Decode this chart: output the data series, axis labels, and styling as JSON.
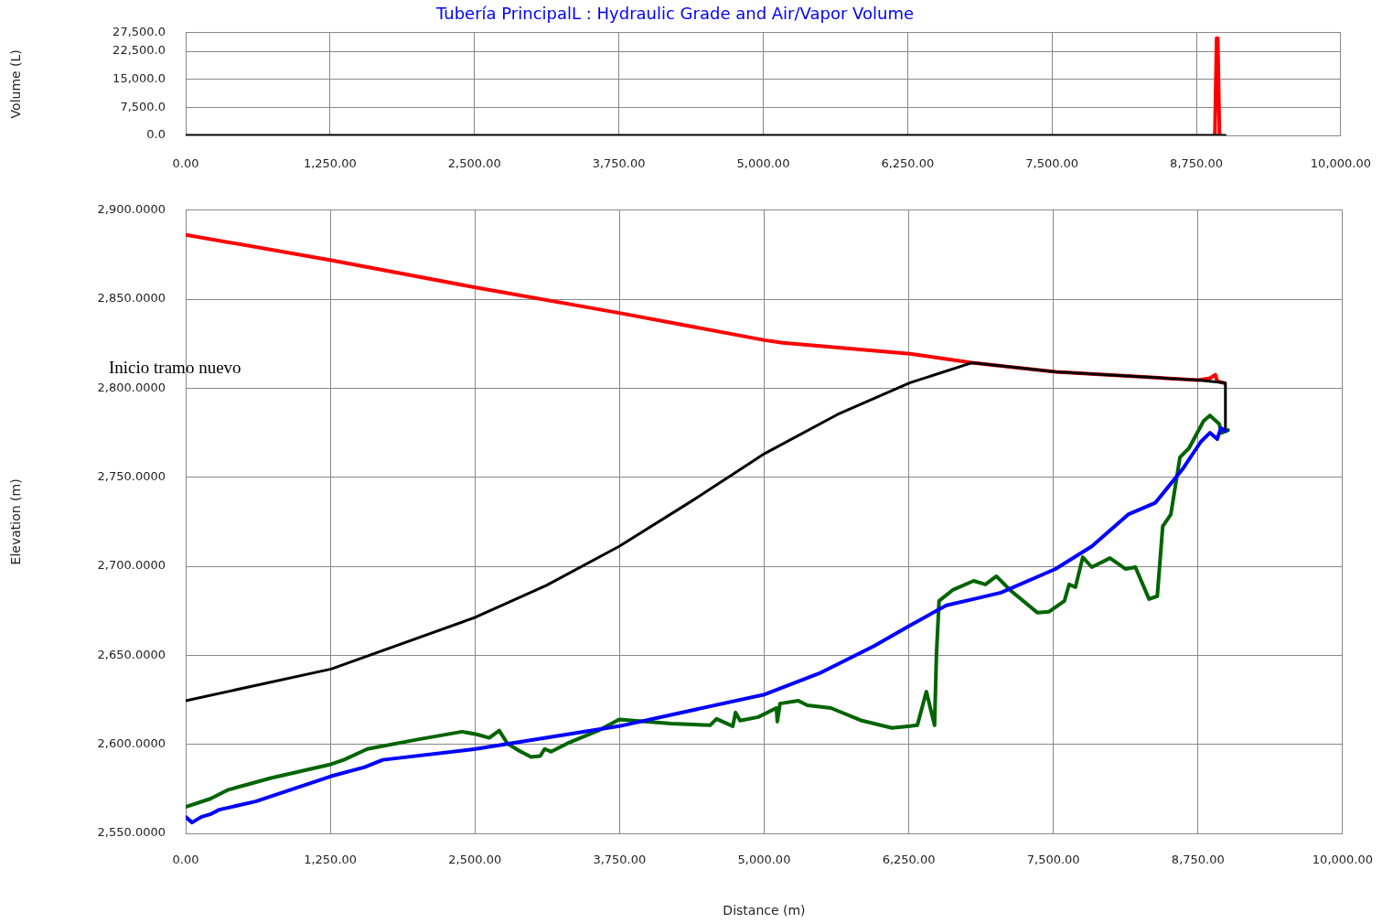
{
  "chart_data": [
    {
      "type": "line",
      "title": "Tubería PrincipalL : Hydraulic Grade and Air/Vapor Volume",
      "ylabel": "Volume (L)",
      "xlim": [
        0,
        10000
      ],
      "xticks": [
        {
          "value": 0,
          "label": "0.00"
        },
        {
          "value": 1250,
          "label": "1,250.00"
        },
        {
          "value": 2500,
          "label": "2,500.00"
        },
        {
          "value": 3750,
          "label": "3,750.00"
        },
        {
          "value": 5000,
          "label": "5,000.00"
        },
        {
          "value": 6250,
          "label": "6,250.00"
        },
        {
          "value": 7500,
          "label": "7,500.00"
        },
        {
          "value": 8750,
          "label": "8,750.00"
        },
        {
          "value": 10000,
          "label": "10,000.00"
        }
      ],
      "ylim": [
        0,
        27500
      ],
      "yticks": [
        {
          "value": 0,
          "label": "0.0"
        },
        {
          "value": 7500,
          "label": "7,500.0"
        },
        {
          "value": 15000,
          "label": "15,000.0"
        },
        {
          "value": 22500,
          "label": "22,500.0"
        },
        {
          "value": 27500,
          "label": "27,500.0"
        }
      ],
      "grid": true,
      "legend": false,
      "marker": "none",
      "series": [
        {
          "color": "#ff0000",
          "x": [
            8910,
            8925,
            8935,
            8950
          ],
          "values": [
            0,
            26000,
            26000,
            0
          ]
        },
        {
          "color": "#000000",
          "x": [
            0,
            9000
          ],
          "values": [
            0,
            0
          ]
        }
      ]
    },
    {
      "type": "line",
      "xlabel": "Distance (m)",
      "ylabel": "Elevation (m)",
      "annotations": [
        "Inicio tramo nuevo"
      ],
      "xlim": [
        0,
        10000
      ],
      "xticks": [
        {
          "value": 0,
          "label": "0.00"
        },
        {
          "value": 1250,
          "label": "1,250.00"
        },
        {
          "value": 2500,
          "label": "2,500.00"
        },
        {
          "value": 3750,
          "label": "3,750.00"
        },
        {
          "value": 5000,
          "label": "5,000.00"
        },
        {
          "value": 6250,
          "label": "6,250.00"
        },
        {
          "value": 7500,
          "label": "7,500.00"
        },
        {
          "value": 8750,
          "label": "8,750.00"
        },
        {
          "value": 10000,
          "label": "10,000.00"
        }
      ],
      "ylim": [
        2550,
        2900
      ],
      "yticks": [
        {
          "value": 2550,
          "label": "2,550.0000"
        },
        {
          "value": 2600,
          "label": "2,600.0000"
        },
        {
          "value": 2650,
          "label": "2,650.0000"
        },
        {
          "value": 2700,
          "label": "2,700.0000"
        },
        {
          "value": 2750,
          "label": "2,750.0000"
        },
        {
          "value": 2800,
          "label": "2,800.0000"
        },
        {
          "value": 2850,
          "label": "2,850.0000"
        },
        {
          "value": 2900,
          "label": "2,900.0000"
        }
      ],
      "grid": true,
      "legend": false,
      "marker": "none",
      "series": [
        {
          "color": "#006400",
          "x": [
            0,
            212,
            369,
            738,
            1257,
            1367,
            1571,
            1995,
            2388,
            2514,
            2624,
            2710,
            2781,
            2883,
            2985,
            3064,
            3103,
            3158,
            3299,
            3566,
            3747,
            4195,
            4533,
            4588,
            4729,
            4753,
            4792,
            4949,
            5106,
            5114,
            5137,
            5295,
            5373,
            5577,
            5845,
            6104,
            6261,
            6324,
            6402,
            6473,
            6489,
            6512,
            6630,
            6811,
            6913,
            7007,
            7125,
            7361,
            7463,
            7596,
            7636,
            7691,
            7754,
            7832,
            7989,
            8123,
            8209,
            8327,
            8398,
            8445,
            8515,
            8594,
            8672,
            8798,
            8853,
            8932,
            8955,
            9010
          ],
          "values": [
            2564.8,
            2569.4,
            2574.5,
            2581.1,
            2588.8,
            2591.3,
            2597.4,
            2602.6,
            2607.1,
            2605.6,
            2603.6,
            2607.7,
            2600.5,
            2596.4,
            2592.9,
            2593.4,
            2597.4,
            2595.9,
            2600.5,
            2607.7,
            2614,
            2611.7,
            2610.7,
            2614.3,
            2610.2,
            2617.9,
            2613.3,
            2615.3,
            2620.4,
            2612.8,
            2622.9,
            2624.5,
            2621.9,
            2620.4,
            2613.3,
            2609.2,
            2610.2,
            2610.7,
            2629.6,
            2610.7,
            2650,
            2680.6,
            2686.7,
            2691.8,
            2689.8,
            2694.4,
            2686.7,
            2674,
            2674.5,
            2680.6,
            2689.8,
            2688.3,
            2705.1,
            2699.5,
            2704.6,
            2698.5,
            2699.5,
            2681.6,
            2683.2,
            2722.4,
            2729.1,
            2761.2,
            2766.3,
            2781.6,
            2784.7,
            2780.1,
            2775,
            2776.5
          ]
        },
        {
          "color": "#0000ff",
          "x": [
            0,
            55,
            134,
            212,
            291,
            605,
            1257,
            1547,
            1705,
            2506,
            3747,
            5004,
            5475,
            5946,
            6261,
            6575,
            6811,
            7046,
            7518,
            7832,
            8146,
            8382,
            8617,
            8774,
            8853,
            8916,
            8947,
            8994
          ],
          "values": [
            2559.2,
            2556.1,
            2559.2,
            2560.7,
            2563.3,
            2567.9,
            2582.1,
            2587.2,
            2591.3,
            2597.4,
            2610.2,
            2628,
            2639.8,
            2655.1,
            2666.8,
            2678.1,
            2681.6,
            2685.2,
            2698.5,
            2711.2,
            2729.1,
            2735.7,
            2754.6,
            2769.9,
            2775,
            2771.4,
            2777.6,
            2776
          ]
        },
        {
          "color": "#ff0000",
          "x": [
            0,
            1257,
            2506,
            3747,
            5004,
            5161,
            6261,
            6795,
            7518,
            8751,
            8853,
            8900,
            8916,
            8971
          ],
          "values": [
            2886.2,
            2871.9,
            2856.6,
            2842.3,
            2827,
            2825.5,
            2819.4,
            2814.3,
            2809.2,
            2804.6,
            2805.6,
            2807.6,
            2804,
            2803
          ]
        },
        {
          "color": "#000000",
          "x": [
            0,
            1257,
            2506,
            3119,
            3747,
            4375,
            5004,
            5632,
            6261,
            6795,
            7518,
            8751,
            8987,
            8987
          ],
          "values": [
            2624.5,
            2642.3,
            2671.4,
            2689.3,
            2711.2,
            2736.7,
            2763.3,
            2785.2,
            2803.1,
            2814.3,
            2809.2,
            2804.6,
            2803.1,
            2777.6
          ]
        }
      ]
    }
  ]
}
